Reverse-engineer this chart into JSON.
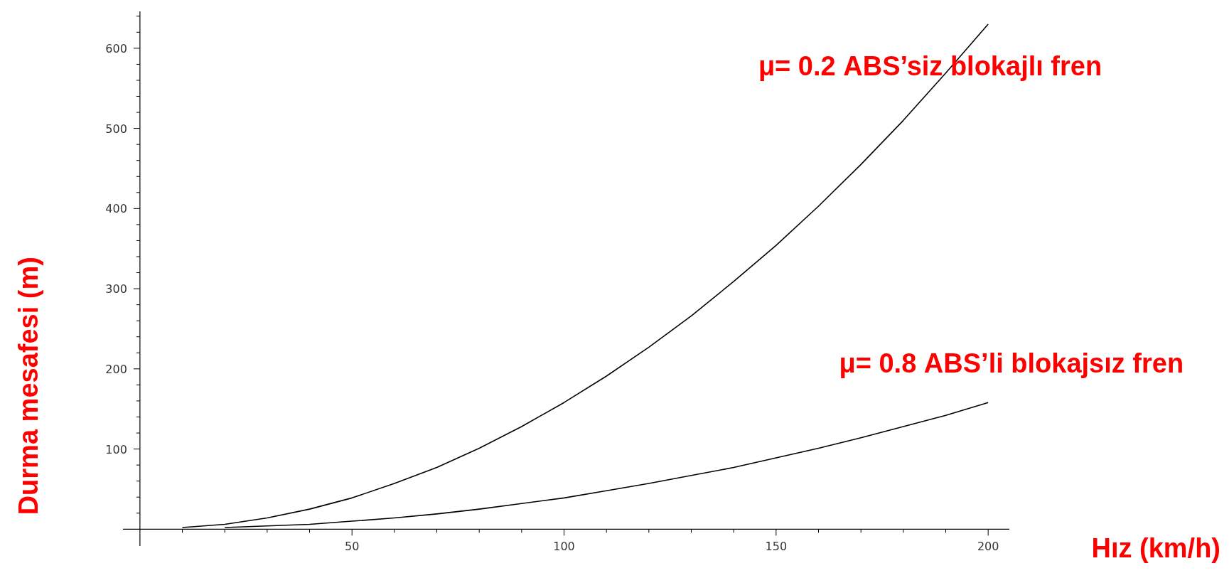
{
  "chart_data": {
    "type": "line",
    "xlabel": "Hız (km/h)",
    "ylabel": "Durma mesafesi (m)",
    "xlim": [
      -4,
      205
    ],
    "ylim": [
      -21,
      646
    ],
    "xticks": [
      {
        "value": 10,
        "label": null
      },
      {
        "value": 20,
        "label": null
      },
      {
        "value": 30,
        "label": null
      },
      {
        "value": 40,
        "label": null
      },
      50,
      {
        "value": 60,
        "label": null
      },
      {
        "value": 70,
        "label": null
      },
      {
        "value": 80,
        "label": null
      },
      {
        "value": 90,
        "label": null
      },
      100,
      {
        "value": 110,
        "label": null
      },
      {
        "value": 120,
        "label": null
      },
      {
        "value": 130,
        "label": null
      },
      {
        "value": 140,
        "label": null
      },
      150,
      {
        "value": 160,
        "label": null
      },
      {
        "value": 170,
        "label": null
      },
      {
        "value": 180,
        "label": null
      },
      {
        "value": 190,
        "label": null
      },
      200
    ],
    "yticks": [
      {
        "value": 20,
        "label": null
      },
      {
        "value": 40,
        "label": null
      },
      {
        "value": 60,
        "label": null
      },
      {
        "value": 80,
        "label": null
      },
      100,
      {
        "value": 120,
        "label": null
      },
      {
        "value": 140,
        "label": null
      },
      {
        "value": 160,
        "label": null
      },
      {
        "value": 180,
        "label": null
      },
      200,
      {
        "value": 220,
        "label": null
      },
      {
        "value": 240,
        "label": null
      },
      {
        "value": 260,
        "label": null
      },
      {
        "value": 280,
        "label": null
      },
      300,
      {
        "value": 320,
        "label": null
      },
      {
        "value": 340,
        "label": null
      },
      {
        "value": 360,
        "label": null
      },
      {
        "value": 380,
        "label": null
      },
      400,
      {
        "value": 420,
        "label": null
      },
      {
        "value": 440,
        "label": null
      },
      {
        "value": 460,
        "label": null
      },
      {
        "value": 480,
        "label": null
      },
      500,
      {
        "value": 520,
        "label": null
      },
      {
        "value": 540,
        "label": null
      },
      {
        "value": 560,
        "label": null
      },
      {
        "value": 580,
        "label": null
      },
      600,
      {
        "value": 620,
        "label": null
      },
      {
        "value": 640,
        "label": null
      }
    ],
    "grid": false,
    "marker": "none",
    "line_style": "solid",
    "series": [
      {
        "name": "μ= 0.2  ABS’siz blokajlı fren",
        "color": "#000000",
        "x": [
          10,
          20,
          30,
          40,
          50,
          60,
          70,
          80,
          90,
          100,
          110,
          120,
          130,
          140,
          150,
          160,
          170,
          180,
          190,
          200
        ],
        "values": [
          2,
          6,
          14,
          25,
          39,
          57,
          77,
          101,
          128,
          158,
          191,
          227,
          266,
          309,
          354,
          403,
          455,
          510,
          569,
          630
        ]
      },
      {
        "name": "μ= 0.8  ABS’li blokajsız fren",
        "color": "#000000",
        "x": [
          20,
          30,
          40,
          50,
          60,
          70,
          80,
          90,
          100,
          110,
          120,
          130,
          140,
          150,
          160,
          170,
          180,
          190,
          200
        ],
        "values": [
          2,
          4,
          6,
          10,
          14,
          19,
          25,
          32,
          39,
          48,
          57,
          67,
          77,
          89,
          101,
          114,
          128,
          142,
          158
        ]
      }
    ]
  }
}
